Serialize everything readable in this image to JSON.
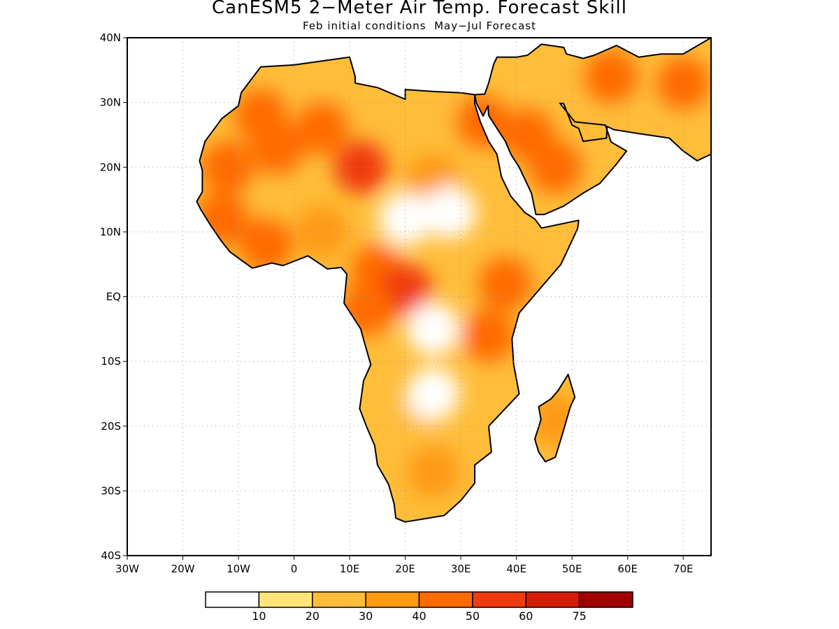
{
  "title": "CanESM5 2−Meter Air Temp. Forecast Skill",
  "subtitle": "Feb initial conditions  May−Jul Forecast",
  "map": {
    "lon_range": [
      -30,
      75
    ],
    "lat_range": [
      -40,
      40
    ],
    "lat_labels": [
      "40N",
      "30N",
      "20N",
      "10N",
      "EQ",
      "10S",
      "20S",
      "30S",
      "40S"
    ],
    "lon_labels": [
      "30W",
      "20W",
      "10W",
      "0",
      "10E",
      "20E",
      "30E",
      "40E",
      "50E",
      "60E",
      "70E"
    ],
    "gridlines": "dotted"
  },
  "colorbar": {
    "labels": [
      "10",
      "20",
      "30",
      "40",
      "50",
      "60",
      "75"
    ],
    "colors": [
      "#ffffff",
      "#ffe57a",
      "#ffbd3a",
      "#ff9a12",
      "#ff6a00",
      "#f03a10",
      "#d31c08",
      "#a10000"
    ]
  },
  "fields": [
    {
      "lon": -3,
      "lat": 23,
      "level": 4
    },
    {
      "lon": 5,
      "lat": 26,
      "level": 4
    },
    {
      "lon": 12,
      "lat": 20,
      "level": 5
    },
    {
      "lon": -6,
      "lat": 28,
      "level": 4
    },
    {
      "lon": 25,
      "lat": 18,
      "level": 3
    },
    {
      "lon": 34,
      "lat": 27,
      "level": 4
    },
    {
      "lon": 42,
      "lat": 25,
      "level": 4
    },
    {
      "lon": 47,
      "lat": 20,
      "level": 4
    },
    {
      "lon": 57,
      "lat": 34,
      "level": 4
    },
    {
      "lon": 70,
      "lat": 33,
      "level": 4
    },
    {
      "lon": -12,
      "lat": 20,
      "level": 4
    },
    {
      "lon": -13,
      "lat": 12,
      "level": 4
    },
    {
      "lon": -5,
      "lat": 8,
      "level": 4
    },
    {
      "lon": 5,
      "lat": 10,
      "level": 3
    },
    {
      "lon": 15,
      "lat": 4,
      "level": 4
    },
    {
      "lon": 20,
      "lat": 1,
      "level": 5
    },
    {
      "lon": 13,
      "lat": -2,
      "level": 4
    },
    {
      "lon": 38,
      "lat": 2,
      "level": 4
    },
    {
      "lon": 35,
      "lat": -6,
      "level": 4
    },
    {
      "lon": 20,
      "lat": -20,
      "level": 2
    },
    {
      "lon": 25,
      "lat": -27,
      "level": 3
    },
    {
      "lon": 47,
      "lat": -19,
      "level": 3
    },
    {
      "lon": 20,
      "lat": 12,
      "level": 0
    },
    {
      "lon": 28,
      "lat": 13,
      "level": 0
    },
    {
      "lon": 25,
      "lat": -5,
      "level": 0
    },
    {
      "lon": 25,
      "lat": -15,
      "level": 0
    }
  ]
}
